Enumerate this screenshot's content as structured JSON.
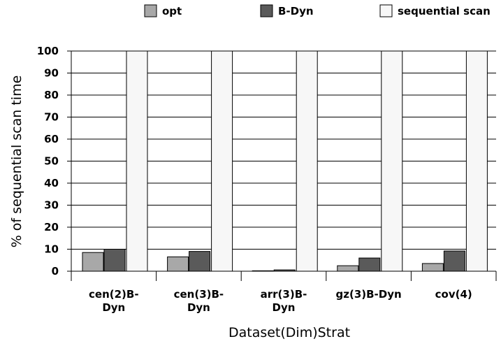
{
  "chart_data": {
    "type": "bar",
    "categories": [
      [
        "cen(2)B-",
        "Dyn"
      ],
      [
        "cen(3)B-",
        "Dyn"
      ],
      [
        "arr(3)B-",
        "Dyn"
      ],
      [
        "gz(3)B-Dyn"
      ],
      [
        "cov(4)"
      ]
    ],
    "series": [
      {
        "name": "opt",
        "color": "#a8a8a8",
        "values": [
          8.5,
          6.5,
          0.2,
          2.5,
          3.5
        ]
      },
      {
        "name": "B-Dyn",
        "color": "#5a5a5a",
        "values": [
          10,
          9,
          0.6,
          6,
          9.2
        ]
      },
      {
        "name": "sequential scan",
        "color": "#f7f7f7",
        "values": [
          100,
          100,
          100,
          100,
          100
        ]
      }
    ],
    "xlabel": "Dataset(Dim)Strat",
    "ylabel": "% of sequential scan time",
    "ylim": [
      0,
      100
    ],
    "yticks": [
      0,
      10,
      20,
      30,
      40,
      50,
      60,
      70,
      80,
      90,
      100
    ],
    "grid": true,
    "legend": "top"
  }
}
